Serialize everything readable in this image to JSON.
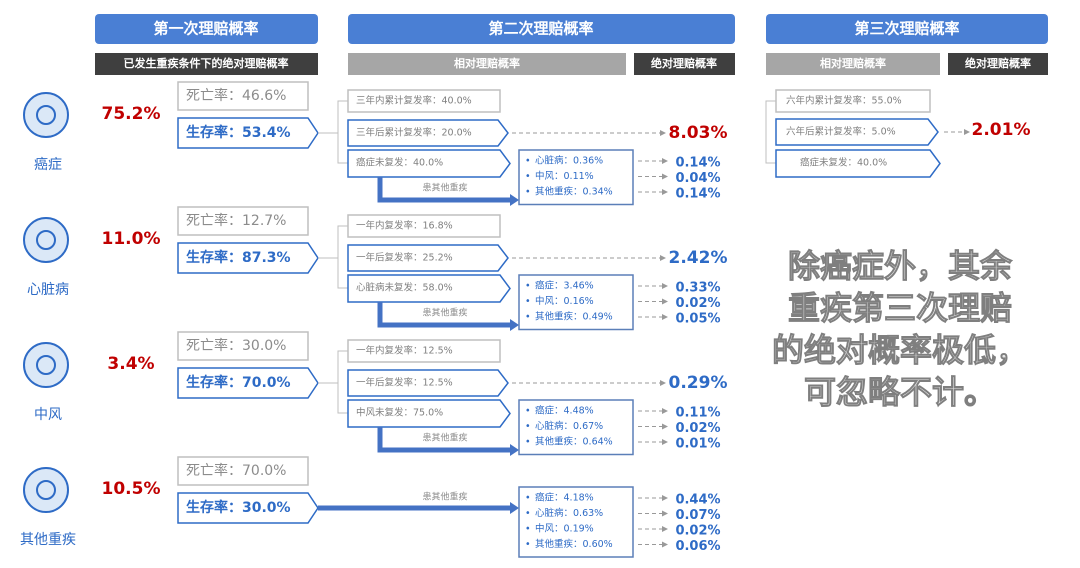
{
  "headers": {
    "first": "第一次理赔概率",
    "second": "第二次理赔概率",
    "third": "第三次理赔概率"
  },
  "subheaders": {
    "first_abs": "已发生重疾条件下的绝对理赔概率",
    "second_rel": "相对理赔概率",
    "second_abs": "绝对理赔概率",
    "third_rel": "相对理赔概率",
    "third_abs": "绝对理赔概率"
  },
  "rows": [
    {
      "name": "癌症",
      "first": "75.2%",
      "death": "死亡率：46.6%",
      "survival": "生存率：53.4%",
      "boxes": [
        "三年内累计复发率：40.0%",
        "三年后累计复发率：20.0%",
        "癌症未复发：40.0%"
      ],
      "big_abs": "8.03%",
      "arrow_label": "患其他重疾",
      "subs": [
        {
          "text": "心脏病：0.36%",
          "abs": "0.14%"
        },
        {
          "text": "中风：0.11%",
          "abs": "0.04%"
        },
        {
          "text": "其他重疾：0.34%",
          "abs": "0.14%"
        }
      ]
    },
    {
      "name": "心脏病",
      "first": "11.0%",
      "death": "死亡率：12.7%",
      "survival": "生存率：87.3%",
      "boxes": [
        "一年内复发率：16.8%",
        "一年后复发率：25.2%",
        "心脏病未复发：58.0%"
      ],
      "big_abs": "2.42%",
      "arrow_label": "患其他重疾",
      "subs": [
        {
          "text": "癌症：3.46%",
          "abs": "0.33%"
        },
        {
          "text": "中风：0.16%",
          "abs": "0.02%"
        },
        {
          "text": "其他重疾：0.49%",
          "abs": "0.05%"
        }
      ]
    },
    {
      "name": "中风",
      "first": "3.4%",
      "death": "死亡率：30.0%",
      "survival": "生存率：70.0%",
      "boxes": [
        "一年内复发率：12.5%",
        "一年后复发率：12.5%",
        "中风未复发：75.0%"
      ],
      "big_abs": "0.29%",
      "arrow_label": "患其他重疾",
      "subs": [
        {
          "text": "癌症：4.48%",
          "abs": "0.11%"
        },
        {
          "text": "心脏病：0.67%",
          "abs": "0.02%"
        },
        {
          "text": "其他重疾：0.64%",
          "abs": "0.01%"
        }
      ]
    },
    {
      "name": "其他重疾",
      "first": "10.5%",
      "death": "死亡率：70.0%",
      "survival": "生存率：30.0%",
      "arrow_label": "患其他重疾",
      "subs": [
        {
          "text": "癌症：4.18%",
          "abs": "0.44%"
        },
        {
          "text": "心脏病：0.63%",
          "abs": "0.07%"
        },
        {
          "text": "中风：0.19%",
          "abs": "0.02%"
        },
        {
          "text": "其他重疾：0.60%",
          "abs": "0.06%"
        }
      ]
    }
  ],
  "third": {
    "boxes": [
      "六年内累计复发率：55.0%",
      "六年后累计复发率：5.0%",
      "癌症未复发：40.0%"
    ],
    "abs": "2.01%"
  },
  "note": {
    "lines": [
      "除癌症外，其余",
      "重疾第三次理赔",
      "的绝对概率极低，",
      "可忽略不计。"
    ]
  }
}
